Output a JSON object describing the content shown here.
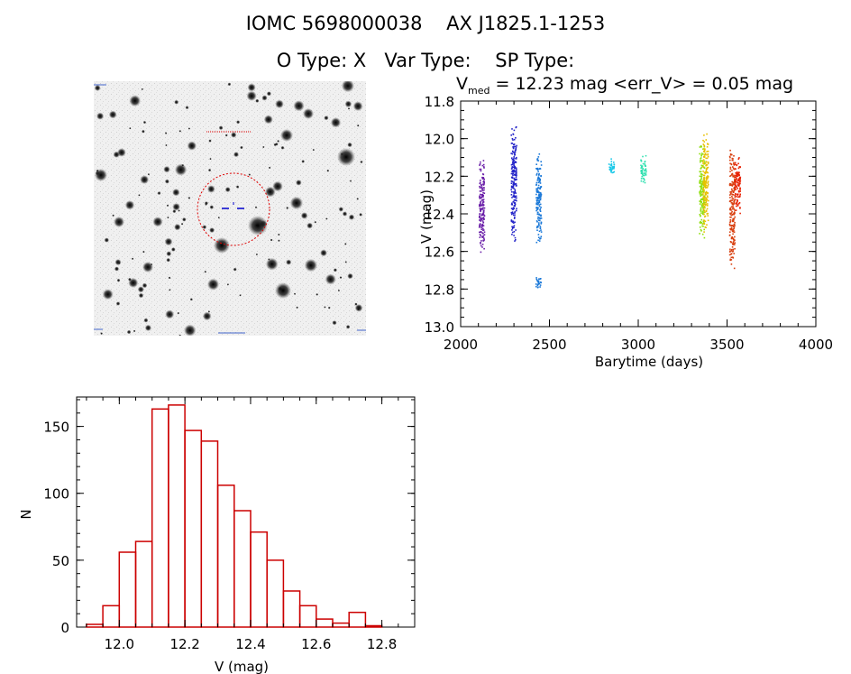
{
  "header": {
    "title_line1": "IOMC 5698000038    AX J1825.1-1253",
    "title_line2": "O Type: X   Var Type:    SP Type:",
    "vmed_prefix": "V",
    "vmed_sub": "med",
    "vmed_rest": " = 12.23 mag <err_V> = 0.05 mag"
  },
  "chart_data": [
    {
      "type": "scatter",
      "xlabel": "Barytime (days)",
      "ylabel": "V (mag)",
      "xlim": [
        2000,
        4000
      ],
      "ylim": [
        13.0,
        11.8
      ],
      "y_inverted": true,
      "xticks": [
        2000,
        2500,
        3000,
        3500,
        4000
      ],
      "yticks": [
        11.8,
        12.0,
        12.2,
        12.4,
        12.6,
        12.8,
        13.0
      ],
      "ytick_labels": [
        "11.8",
        "12.0",
        "12.2",
        "12.4",
        "12.6",
        "12.8",
        "13.0"
      ],
      "clusters": [
        {
          "x": 2120,
          "ymin": 12.08,
          "ymax": 12.62,
          "color": "#6a1fa8"
        },
        {
          "x": 2300,
          "ymin": 11.9,
          "ymax": 12.57,
          "color": "#2424c8"
        },
        {
          "x": 2440,
          "ymin": 12.05,
          "ymax": 12.57,
          "color": "#1a78d8"
        },
        {
          "x": 2440,
          "ymin": 12.72,
          "ymax": 12.8,
          "color": "#1a78d8"
        },
        {
          "x": 2850,
          "ymin": 12.1,
          "ymax": 12.2,
          "color": "#18c8e8"
        },
        {
          "x": 3030,
          "ymin": 12.08,
          "ymax": 12.25,
          "color": "#30e0b0"
        },
        {
          "x": 3360,
          "ymin": 12.0,
          "ymax": 12.55,
          "color": "#90e010"
        },
        {
          "x": 3380,
          "ymin": 11.95,
          "ymax": 12.5,
          "color": "#e8c000"
        },
        {
          "x": 3530,
          "ymin": 12.05,
          "ymax": 12.72,
          "color": "#d84010"
        },
        {
          "x": 3560,
          "ymin": 12.08,
          "ymax": 12.4,
          "color": "#e82000"
        }
      ]
    },
    {
      "type": "bar",
      "subtype": "histogram",
      "xlabel": "V (mag)",
      "ylabel": "N",
      "xlim": [
        11.87,
        12.9
      ],
      "ylim": [
        0,
        172
      ],
      "xticks": [
        12.0,
        12.2,
        12.4,
        12.6,
        12.8
      ],
      "xtick_labels": [
        "12.0",
        "12.2",
        "12.4",
        "12.6",
        "12.8"
      ],
      "yticks": [
        0,
        50,
        100,
        150
      ],
      "bin_width": 0.05,
      "bin_starts": [
        11.9,
        11.95,
        12.0,
        12.05,
        12.1,
        12.15,
        12.2,
        12.25,
        12.3,
        12.35,
        12.4,
        12.45,
        12.5,
        12.55,
        12.6,
        12.65,
        12.7,
        12.75
      ],
      "values": [
        2,
        16,
        56,
        64,
        163,
        166,
        147,
        139,
        106,
        87,
        71,
        50,
        27,
        16,
        6,
        3,
        11,
        1
      ],
      "bar_color": "#cc0000"
    }
  ],
  "colors": {
    "histogram": "#cc0000",
    "aperture_circle": "#dd0000",
    "target_marker": "#0000cc"
  }
}
